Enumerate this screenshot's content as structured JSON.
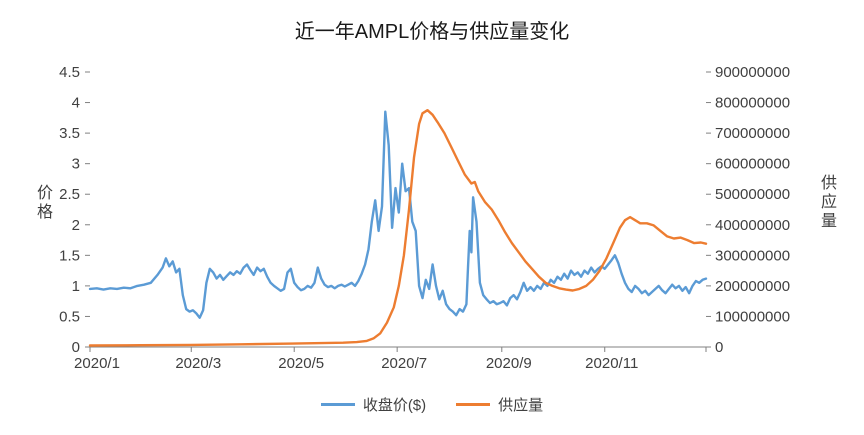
{
  "chart_data": {
    "type": "line",
    "title": "近一年AMPL价格与供应量变化",
    "grid": false,
    "legend_position": "bottom",
    "x_axis": {
      "range_days": [
        0,
        365
      ],
      "ticks": [
        {
          "day": 0,
          "label": "2020/1"
        },
        {
          "day": 60,
          "label": "2020/3"
        },
        {
          "day": 121,
          "label": "2020/5"
        },
        {
          "day": 182,
          "label": "2020/7"
        },
        {
          "day": 244,
          "label": "2020/9"
        },
        {
          "day": 305,
          "label": "2020/11"
        }
      ]
    },
    "left_axis": {
      "title": "价格",
      "min": 0,
      "max": 4.5,
      "ticks": [
        {
          "v": 0,
          "label": "0"
        },
        {
          "v": 0.5,
          "label": "0.5"
        },
        {
          "v": 1,
          "label": "1"
        },
        {
          "v": 1.5,
          "label": "1.5"
        },
        {
          "v": 2,
          "label": "2"
        },
        {
          "v": 2.5,
          "label": "2.5"
        },
        {
          "v": 3,
          "label": "3"
        },
        {
          "v": 3.5,
          "label": "3.5"
        },
        {
          "v": 4,
          "label": "4"
        },
        {
          "v": 4.5,
          "label": "4.5"
        }
      ]
    },
    "right_axis": {
      "title": "供应量",
      "min": 0,
      "max": 900000000,
      "ticks": [
        {
          "v": 0,
          "label": "0"
        },
        {
          "v": 100000000,
          "label": "100000000"
        },
        {
          "v": 200000000,
          "label": "200000000"
        },
        {
          "v": 300000000,
          "label": "300000000"
        },
        {
          "v": 400000000,
          "label": "400000000"
        },
        {
          "v": 500000000,
          "label": "500000000"
        },
        {
          "v": 600000000,
          "label": "600000000"
        },
        {
          "v": 700000000,
          "label": "700000000"
        },
        {
          "v": 800000000,
          "label": "800000000"
        },
        {
          "v": 900000000,
          "label": "900000000"
        }
      ]
    },
    "series": [
      {
        "name": "收盘价($)",
        "axis": "left",
        "color": "#5B9BD5",
        "points": [
          [
            0,
            0.95
          ],
          [
            4,
            0.96
          ],
          [
            8,
            0.94
          ],
          [
            12,
            0.96
          ],
          [
            16,
            0.95
          ],
          [
            20,
            0.97
          ],
          [
            24,
            0.96
          ],
          [
            28,
            1.0
          ],
          [
            32,
            1.02
          ],
          [
            36,
            1.05
          ],
          [
            40,
            1.18
          ],
          [
            43,
            1.3
          ],
          [
            45,
            1.45
          ],
          [
            47,
            1.32
          ],
          [
            49,
            1.4
          ],
          [
            51,
            1.22
          ],
          [
            53,
            1.28
          ],
          [
            55,
            0.85
          ],
          [
            57,
            0.62
          ],
          [
            59,
            0.58
          ],
          [
            61,
            0.6
          ],
          [
            63,
            0.55
          ],
          [
            65,
            0.48
          ],
          [
            67,
            0.6
          ],
          [
            69,
            1.05
          ],
          [
            71,
            1.28
          ],
          [
            73,
            1.22
          ],
          [
            75,
            1.12
          ],
          [
            77,
            1.18
          ],
          [
            79,
            1.1
          ],
          [
            81,
            1.16
          ],
          [
            83,
            1.22
          ],
          [
            85,
            1.18
          ],
          [
            87,
            1.24
          ],
          [
            89,
            1.2
          ],
          [
            91,
            1.3
          ],
          [
            93,
            1.35
          ],
          [
            95,
            1.26
          ],
          [
            97,
            1.18
          ],
          [
            99,
            1.3
          ],
          [
            101,
            1.24
          ],
          [
            103,
            1.28
          ],
          [
            105,
            1.15
          ],
          [
            107,
            1.05
          ],
          [
            109,
            1.0
          ],
          [
            111,
            0.96
          ],
          [
            113,
            0.92
          ],
          [
            115,
            0.95
          ],
          [
            117,
            1.22
          ],
          [
            119,
            1.28
          ],
          [
            121,
            1.05
          ],
          [
            123,
            0.98
          ],
          [
            125,
            0.93
          ],
          [
            127,
            0.95
          ],
          [
            129,
            1.0
          ],
          [
            131,
            0.97
          ],
          [
            133,
            1.05
          ],
          [
            135,
            1.3
          ],
          [
            137,
            1.12
          ],
          [
            139,
            1.02
          ],
          [
            141,
            0.98
          ],
          [
            143,
            1.0
          ],
          [
            145,
            0.96
          ],
          [
            147,
            1.0
          ],
          [
            149,
            1.02
          ],
          [
            151,
            0.99
          ],
          [
            153,
            1.02
          ],
          [
            155,
            1.05
          ],
          [
            157,
            1.0
          ],
          [
            159,
            1.08
          ],
          [
            161,
            1.2
          ],
          [
            163,
            1.35
          ],
          [
            165,
            1.6
          ],
          [
            167,
            2.05
          ],
          [
            169,
            2.4
          ],
          [
            171,
            1.9
          ],
          [
            173,
            2.3
          ],
          [
            175,
            3.85
          ],
          [
            177,
            3.3
          ],
          [
            179,
            1.95
          ],
          [
            181,
            2.6
          ],
          [
            183,
            2.2
          ],
          [
            185,
            3.0
          ],
          [
            187,
            2.55
          ],
          [
            189,
            2.6
          ],
          [
            191,
            2.05
          ],
          [
            193,
            1.9
          ],
          [
            195,
            1.0
          ],
          [
            197,
            0.8
          ],
          [
            199,
            1.1
          ],
          [
            201,
            0.95
          ],
          [
            203,
            1.35
          ],
          [
            205,
            1.0
          ],
          [
            207,
            0.78
          ],
          [
            209,
            0.92
          ],
          [
            211,
            0.7
          ],
          [
            213,
            0.62
          ],
          [
            215,
            0.58
          ],
          [
            217,
            0.52
          ],
          [
            219,
            0.62
          ],
          [
            221,
            0.58
          ],
          [
            223,
            0.7
          ],
          [
            224,
            1.3
          ],
          [
            225,
            1.9
          ],
          [
            226,
            1.55
          ],
          [
            227,
            2.45
          ],
          [
            229,
            2.05
          ],
          [
            231,
            1.05
          ],
          [
            233,
            0.85
          ],
          [
            235,
            0.78
          ],
          [
            237,
            0.72
          ],
          [
            239,
            0.75
          ],
          [
            241,
            0.7
          ],
          [
            243,
            0.72
          ],
          [
            245,
            0.75
          ],
          [
            247,
            0.68
          ],
          [
            249,
            0.8
          ],
          [
            251,
            0.85
          ],
          [
            253,
            0.78
          ],
          [
            255,
            0.9
          ],
          [
            257,
            1.05
          ],
          [
            259,
            0.92
          ],
          [
            261,
            0.98
          ],
          [
            263,
            0.92
          ],
          [
            265,
            1.0
          ],
          [
            267,
            0.95
          ],
          [
            269,
            1.05
          ],
          [
            271,
            1.0
          ],
          [
            273,
            1.1
          ],
          [
            275,
            1.05
          ],
          [
            277,
            1.15
          ],
          [
            279,
            1.1
          ],
          [
            281,
            1.2
          ],
          [
            283,
            1.12
          ],
          [
            285,
            1.25
          ],
          [
            287,
            1.18
          ],
          [
            289,
            1.22
          ],
          [
            291,
            1.15
          ],
          [
            293,
            1.25
          ],
          [
            295,
            1.2
          ],
          [
            297,
            1.3
          ],
          [
            299,
            1.22
          ],
          [
            301,
            1.28
          ],
          [
            303,
            1.32
          ],
          [
            305,
            1.28
          ],
          [
            307,
            1.35
          ],
          [
            309,
            1.42
          ],
          [
            311,
            1.5
          ],
          [
            313,
            1.38
          ],
          [
            315,
            1.2
          ],
          [
            317,
            1.05
          ],
          [
            319,
            0.95
          ],
          [
            321,
            0.9
          ],
          [
            323,
            1.0
          ],
          [
            325,
            0.95
          ],
          [
            327,
            0.88
          ],
          [
            329,
            0.92
          ],
          [
            331,
            0.85
          ],
          [
            333,
            0.9
          ],
          [
            335,
            0.95
          ],
          [
            337,
            1.0
          ],
          [
            339,
            0.93
          ],
          [
            341,
            0.88
          ],
          [
            343,
            0.95
          ],
          [
            345,
            1.02
          ],
          [
            347,
            0.96
          ],
          [
            349,
            1.0
          ],
          [
            351,
            0.92
          ],
          [
            353,
            0.98
          ],
          [
            355,
            0.88
          ],
          [
            357,
            1.0
          ],
          [
            359,
            1.08
          ],
          [
            361,
            1.05
          ],
          [
            363,
            1.1
          ],
          [
            365,
            1.12
          ]
        ]
      },
      {
        "name": "供应量",
        "axis": "right",
        "color": "#ED7D31",
        "points": [
          [
            0,
            5000000
          ],
          [
            30,
            6000000
          ],
          [
            60,
            7000000
          ],
          [
            90,
            9000000
          ],
          [
            120,
            11000000
          ],
          [
            150,
            14000000
          ],
          [
            158,
            16000000
          ],
          [
            164,
            20000000
          ],
          [
            168,
            28000000
          ],
          [
            172,
            45000000
          ],
          [
            176,
            80000000
          ],
          [
            180,
            130000000
          ],
          [
            183,
            200000000
          ],
          [
            186,
            300000000
          ],
          [
            189,
            450000000
          ],
          [
            192,
            620000000
          ],
          [
            195,
            730000000
          ],
          [
            197,
            765000000
          ],
          [
            200,
            775000000
          ],
          [
            203,
            760000000
          ],
          [
            206,
            735000000
          ],
          [
            210,
            700000000
          ],
          [
            214,
            655000000
          ],
          [
            218,
            610000000
          ],
          [
            222,
            565000000
          ],
          [
            226,
            535000000
          ],
          [
            228,
            540000000
          ],
          [
            230,
            510000000
          ],
          [
            234,
            475000000
          ],
          [
            238,
            450000000
          ],
          [
            242,
            415000000
          ],
          [
            246,
            375000000
          ],
          [
            250,
            340000000
          ],
          [
            254,
            310000000
          ],
          [
            258,
            280000000
          ],
          [
            262,
            255000000
          ],
          [
            266,
            230000000
          ],
          [
            270,
            210000000
          ],
          [
            274,
            200000000
          ],
          [
            278,
            192000000
          ],
          [
            282,
            188000000
          ],
          [
            286,
            185000000
          ],
          [
            290,
            190000000
          ],
          [
            294,
            200000000
          ],
          [
            298,
            220000000
          ],
          [
            302,
            250000000
          ],
          [
            306,
            290000000
          ],
          [
            310,
            340000000
          ],
          [
            314,
            390000000
          ],
          [
            317,
            415000000
          ],
          [
            320,
            425000000
          ],
          [
            323,
            415000000
          ],
          [
            326,
            405000000
          ],
          [
            330,
            405000000
          ],
          [
            334,
            398000000
          ],
          [
            338,
            380000000
          ],
          [
            342,
            362000000
          ],
          [
            346,
            355000000
          ],
          [
            350,
            358000000
          ],
          [
            354,
            350000000
          ],
          [
            358,
            340000000
          ],
          [
            362,
            342000000
          ],
          [
            365,
            338000000
          ]
        ]
      }
    ]
  }
}
